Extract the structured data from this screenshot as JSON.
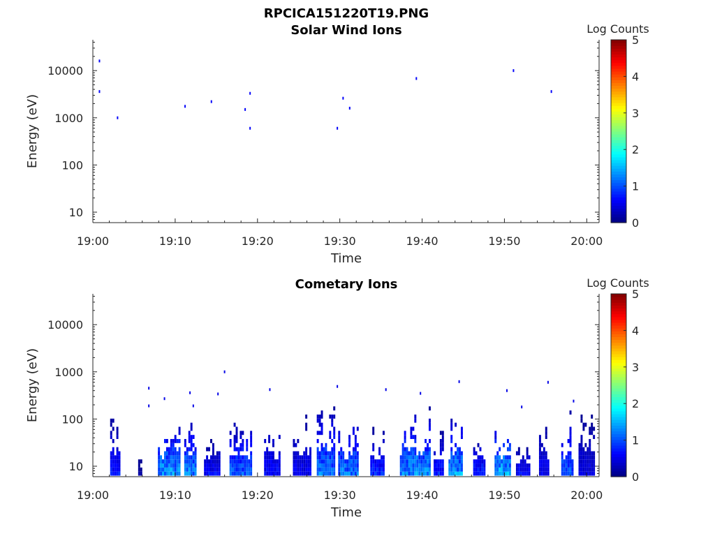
{
  "figure": {
    "title": "RPCICA151220T19.PNG"
  },
  "chart_data": [
    {
      "type": "heatmap",
      "title": "Solar Wind Ions",
      "xlabel": "Time",
      "ylabel": "Energy (eV)",
      "x_ticks": [
        "19:00",
        "19:10",
        "19:20",
        "19:30",
        "19:40",
        "19:50",
        "20:00"
      ],
      "xlim_minutes": [
        0,
        61.5
      ],
      "y_ticks": [
        "10",
        "100",
        "1000",
        "10000"
      ],
      "ylim": [
        6,
        45000
      ],
      "yscale": "log",
      "colorbar": {
        "label": "Log Counts",
        "range": [
          0,
          5
        ],
        "ticks": [
          "0",
          "1",
          "2",
          "3",
          "4",
          "5"
        ],
        "colormap": "jet"
      },
      "points": [
        {
          "t": 0.8,
          "e": 16000,
          "c": 0.6
        },
        {
          "t": 0.8,
          "e": 3600,
          "c": 0.6
        },
        {
          "t": 3.0,
          "e": 1000,
          "c": 0.6
        },
        {
          "t": 11.2,
          "e": 1750,
          "c": 0.6
        },
        {
          "t": 14.4,
          "e": 2200,
          "c": 0.6
        },
        {
          "t": 18.5,
          "e": 1500,
          "c": 0.6
        },
        {
          "t": 19.1,
          "e": 3300,
          "c": 0.6
        },
        {
          "t": 19.1,
          "e": 600,
          "c": 0.6
        },
        {
          "t": 29.7,
          "e": 600,
          "c": 0.6
        },
        {
          "t": 30.4,
          "e": 2600,
          "c": 0.6
        },
        {
          "t": 31.2,
          "e": 1600,
          "c": 0.6
        },
        {
          "t": 39.3,
          "e": 6800,
          "c": 0.6
        },
        {
          "t": 51.1,
          "e": 10000,
          "c": 0.6
        },
        {
          "t": 55.7,
          "e": 3600,
          "c": 0.6
        }
      ]
    },
    {
      "type": "heatmap",
      "title": "Cometary Ions",
      "xlabel": "Time",
      "ylabel": "Energy (eV)",
      "x_ticks": [
        "19:00",
        "19:10",
        "19:20",
        "19:30",
        "19:40",
        "19:50",
        "20:00"
      ],
      "xlim_minutes": [
        0,
        61.5
      ],
      "y_ticks": [
        "10",
        "100",
        "1000",
        "10000"
      ],
      "ylim": [
        6,
        45000
      ],
      "yscale": "log",
      "colorbar": {
        "label": "Log Counts",
        "range": [
          0,
          5
        ],
        "ticks": [
          "0",
          "1",
          "2",
          "3",
          "4",
          "5"
        ],
        "colormap": "jet"
      },
      "bursts": [
        {
          "t0": 2.1,
          "t1": 3.3,
          "eTop": 120,
          "peak": 0.9
        },
        {
          "t0": 5.5,
          "t1": 6.0,
          "eTop": 12,
          "peak": 0.2
        },
        {
          "t0": 7.9,
          "t1": 10.6,
          "eTop": 110,
          "peak": 1.7
        },
        {
          "t0": 11.1,
          "t1": 12.6,
          "eTop": 95,
          "peak": 1.6
        },
        {
          "t0": 13.5,
          "t1": 15.4,
          "eTop": 35,
          "peak": 0.8
        },
        {
          "t0": 16.6,
          "t1": 19.3,
          "eTop": 100,
          "peak": 1.3
        },
        {
          "t0": 20.8,
          "t1": 22.8,
          "eTop": 160,
          "peak": 0.8
        },
        {
          "t0": 24.3,
          "t1": 26.5,
          "eTop": 150,
          "peak": 0.7
        },
        {
          "t0": 27.2,
          "t1": 29.3,
          "eTop": 180,
          "peak": 1.5
        },
        {
          "t0": 29.8,
          "t1": 32.3,
          "eTop": 110,
          "peak": 1.5
        },
        {
          "t0": 33.7,
          "t1": 35.3,
          "eTop": 60,
          "peak": 1.0
        },
        {
          "t0": 37.3,
          "t1": 41.0,
          "eTop": 200,
          "peak": 1.6
        },
        {
          "t0": 41.4,
          "t1": 42.6,
          "eTop": 55,
          "peak": 1.0
        },
        {
          "t0": 43.2,
          "t1": 44.8,
          "eTop": 120,
          "peak": 1.7
        },
        {
          "t0": 46.2,
          "t1": 47.7,
          "eTop": 45,
          "peak": 1.0
        },
        {
          "t0": 48.8,
          "t1": 50.6,
          "eTop": 100,
          "peak": 1.8
        },
        {
          "t0": 51.4,
          "t1": 53.1,
          "eTop": 30,
          "peak": 0.8
        },
        {
          "t0": 54.2,
          "t1": 55.4,
          "eTop": 120,
          "peak": 0.7
        },
        {
          "t0": 56.9,
          "t1": 58.3,
          "eTop": 160,
          "peak": 1.3
        },
        {
          "t0": 59.0,
          "t1": 61.0,
          "eTop": 140,
          "peak": 0.6
        }
      ],
      "points": [
        {
          "t": 6.8,
          "e": 450,
          "c": 0.5
        },
        {
          "t": 6.8,
          "e": 190,
          "c": 0.5
        },
        {
          "t": 8.7,
          "e": 270,
          "c": 0.5
        },
        {
          "t": 11.8,
          "e": 360,
          "c": 0.5
        },
        {
          "t": 12.2,
          "e": 190,
          "c": 0.5
        },
        {
          "t": 15.2,
          "e": 340,
          "c": 0.5
        },
        {
          "t": 16.0,
          "e": 1000,
          "c": 0.5
        },
        {
          "t": 21.5,
          "e": 420,
          "c": 0.5
        },
        {
          "t": 29.7,
          "e": 490,
          "c": 0.5
        },
        {
          "t": 35.6,
          "e": 420,
          "c": 0.5
        },
        {
          "t": 39.8,
          "e": 350,
          "c": 0.5
        },
        {
          "t": 44.5,
          "e": 620,
          "c": 0.5
        },
        {
          "t": 50.3,
          "e": 400,
          "c": 0.5
        },
        {
          "t": 52.1,
          "e": 180,
          "c": 0.5
        },
        {
          "t": 55.3,
          "e": 600,
          "c": 0.5
        },
        {
          "t": 58.4,
          "e": 240,
          "c": 0.5
        }
      ]
    }
  ]
}
